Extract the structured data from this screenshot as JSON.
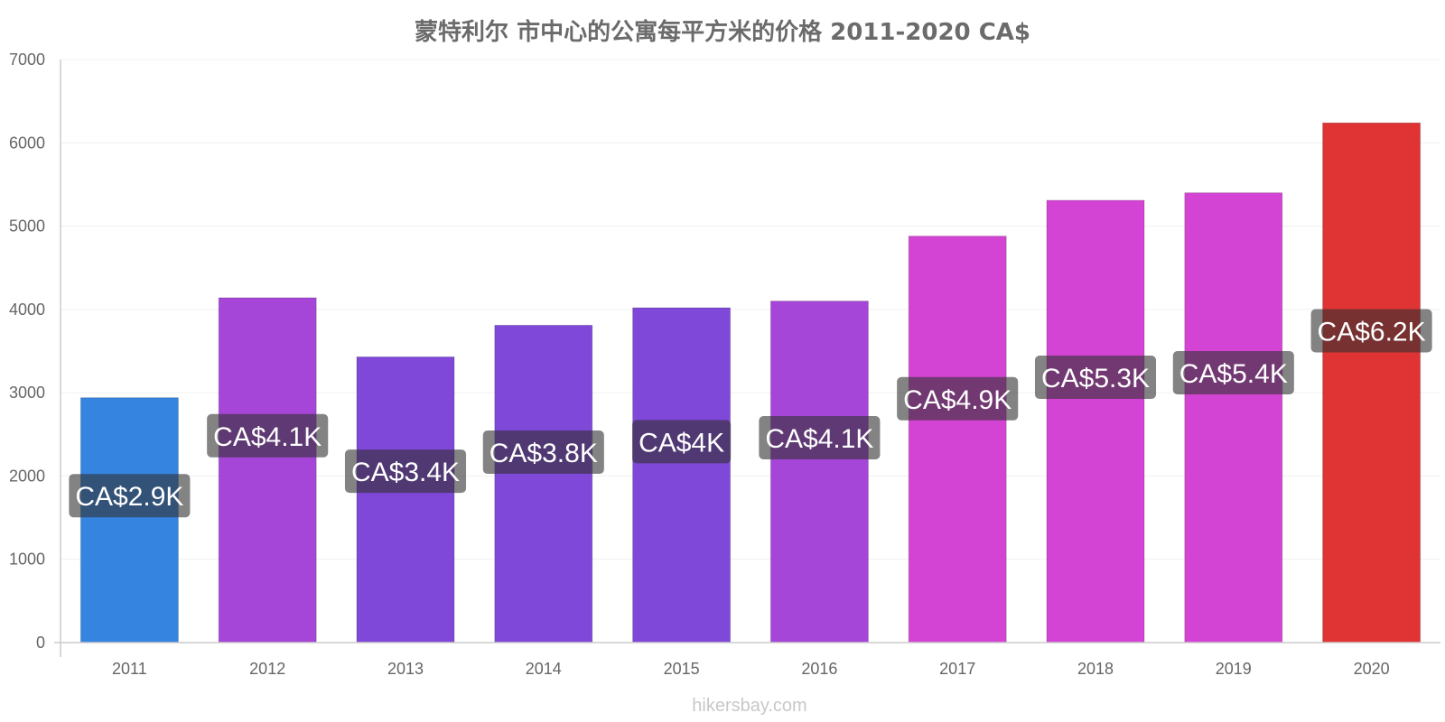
{
  "chart_data": {
    "type": "bar",
    "title": "蒙特利尔 市中心的公寓每平方米的价格 2011-2020 CA$",
    "categories": [
      "2011",
      "2012",
      "2013",
      "2014",
      "2015",
      "2016",
      "2017",
      "2018",
      "2019",
      "2020"
    ],
    "values": [
      2940,
      4140,
      3430,
      3810,
      4020,
      4100,
      4880,
      5310,
      5400,
      6240
    ],
    "data_labels": [
      "CA$2.9K",
      "CA$4.1K",
      "CA$3.4K",
      "CA$3.8K",
      "CA$4K",
      "CA$4.1K",
      "CA$4.9K",
      "CA$5.3K",
      "CA$5.4K",
      "CA$6.2K"
    ],
    "bar_colors": [
      "#3584e0",
      "#a646d8",
      "#8048d8",
      "#8048d8",
      "#8048d8",
      "#a646d8",
      "#d444d4",
      "#d444d4",
      "#d444d4",
      "#e03434"
    ],
    "ylim": [
      0,
      7000
    ],
    "yticks": [
      "0",
      "1000",
      "2000",
      "3000",
      "4000",
      "5000",
      "6000",
      "7000"
    ],
    "xlabel": "",
    "ylabel": "",
    "grid": true
  },
  "watermark": "hikersbay.com"
}
